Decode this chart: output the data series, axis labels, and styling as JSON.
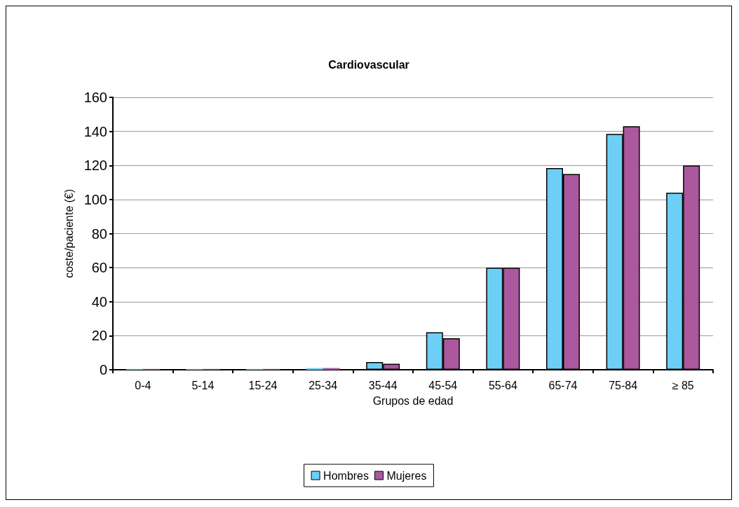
{
  "chart_data": {
    "type": "bar",
    "title": "Cardiovascular",
    "xlabel": "Grupos de edad",
    "ylabel": "coste/paciente (€)",
    "categories": [
      "0-4",
      "5-14",
      "15-24",
      "25-34",
      "35-44",
      "45-54",
      "55-64",
      "65-74",
      "75-84",
      "≥ 85"
    ],
    "series": [
      {
        "name": "Hombres",
        "color": "#6dcff6",
        "values": [
          0.5,
          0.5,
          0.5,
          1,
          4.5,
          22,
          60,
          118.5,
          138.5,
          104
        ]
      },
      {
        "name": "Mujeres",
        "color": "#ab589f",
        "values": [
          0.5,
          0.5,
          0.5,
          1,
          3.5,
          18.5,
          60,
          115,
          143,
          120
        ]
      }
    ],
    "ylim": [
      0,
      160
    ],
    "yticks": [
      0,
      20,
      40,
      60,
      80,
      100,
      120,
      140,
      160
    ],
    "grid": "y",
    "legend": "bottom"
  }
}
